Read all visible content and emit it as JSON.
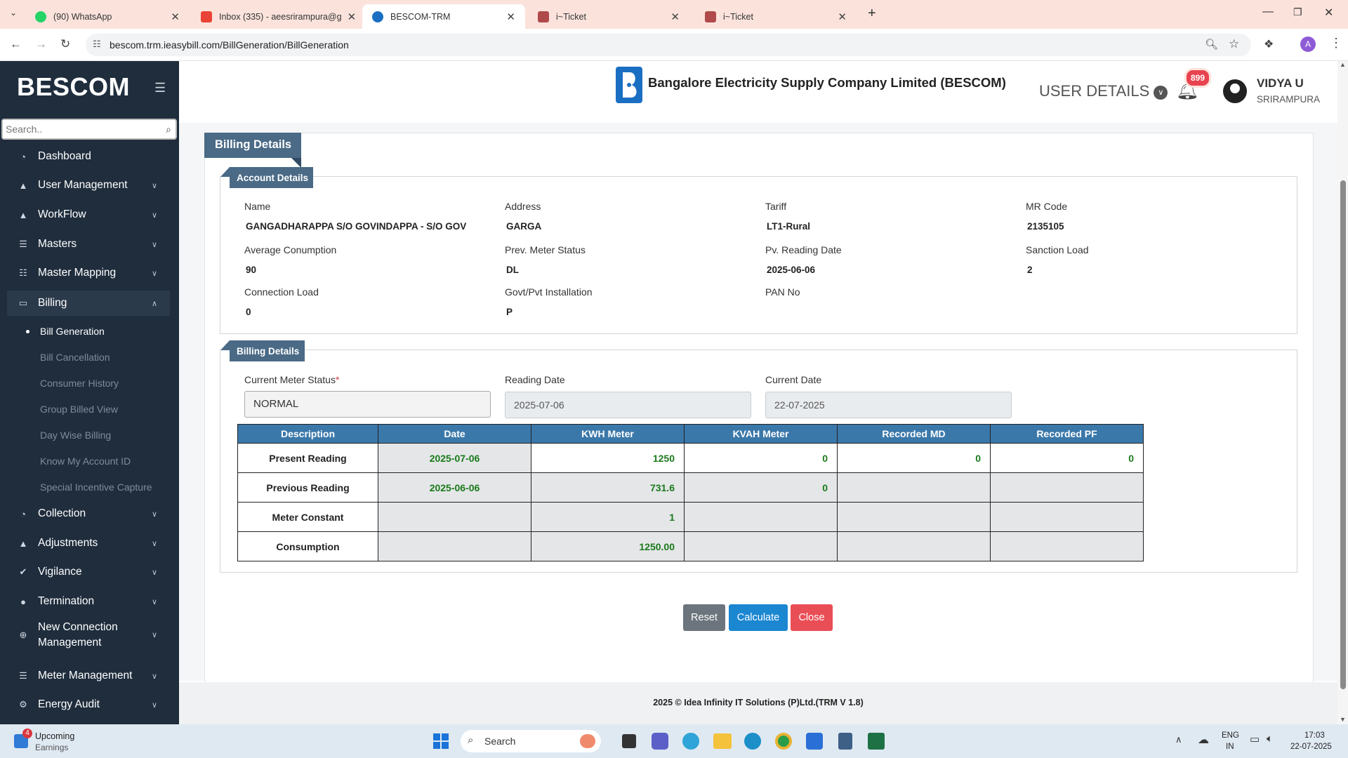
{
  "browser": {
    "tabs": [
      {
        "title": "(90) WhatsApp",
        "icon": "whatsapp-icon",
        "color": "#25d366"
      },
      {
        "title": "Inbox (335) - aeesrirampura@g",
        "icon": "gmail-icon",
        "color": "#ea4335"
      },
      {
        "title": "BESCOM-TRM",
        "icon": "bescom-icon",
        "color": "#1b6fc2"
      },
      {
        "title": "i~Ticket",
        "icon": "ticket-icon",
        "color": "#8b3a3a"
      },
      {
        "title": "i~Ticket",
        "icon": "ticket-icon",
        "color": "#8b3a3a"
      }
    ],
    "url": "bescom.trm.ieasybill.com/BillGeneration/BillGeneration",
    "profile_initial": "A"
  },
  "sidebar": {
    "brand": "BESCOM",
    "search_placeholder": "Search..",
    "menu": [
      {
        "label": "Dashboard",
        "icon": "dashboard-icon"
      },
      {
        "label": "User Management",
        "icon": "user-icon"
      },
      {
        "label": "WorkFlow",
        "icon": "workflow-icon"
      },
      {
        "label": "Masters",
        "icon": "list-icon"
      },
      {
        "label": "Master Mapping",
        "icon": "sitemap-icon"
      },
      {
        "label": "Billing",
        "icon": "monitor-icon"
      },
      {
        "label": "Collection",
        "icon": "collection-icon"
      },
      {
        "label": "Adjustments",
        "icon": "adjust-icon"
      },
      {
        "label": "Vigilance",
        "icon": "vigilance-icon"
      },
      {
        "label": "Termination",
        "icon": "termination-icon"
      },
      {
        "label": "New Connection Management",
        "icon": "plus-circle-icon"
      },
      {
        "label": "Meter Management",
        "icon": "list-icon"
      },
      {
        "label": "Energy Audit",
        "icon": "cogs-icon"
      }
    ],
    "billing_sub": [
      "Bill Generation",
      "Bill Cancellation",
      "Consumer History",
      "Group Billed View",
      "Day Wise Billing",
      "Know My Account ID",
      "Special Incentive Capture"
    ]
  },
  "header": {
    "company": "Bangalore Electricity Supply Company Limited (BESCOM)",
    "user_details": "USER DETAILS",
    "notifications": "899",
    "user_name": "VIDYA U",
    "user_location": "SRIRAMPURA"
  },
  "billing": {
    "panel_title": "Billing Details",
    "account_section": "Account Details",
    "account": [
      {
        "label": "Name",
        "value": "GANGADHARAPPA S/O GOVINDAPPA - S/O GOV"
      },
      {
        "label": "Address",
        "value": "GARGA"
      },
      {
        "label": "Tariff",
        "value": "LT1-Rural"
      },
      {
        "label": "MR Code",
        "value": "2135105"
      },
      {
        "label": "Average Conumption",
        "value": "90"
      },
      {
        "label": "Prev. Meter Status",
        "value": "DL"
      },
      {
        "label": "Pv. Reading Date",
        "value": "2025-06-06"
      },
      {
        "label": "Sanction Load",
        "value": "2"
      },
      {
        "label": "Connection Load",
        "value": "0"
      },
      {
        "label": "Govt/Pvt Installation",
        "value": "P"
      },
      {
        "label": "PAN No",
        "value": ""
      }
    ],
    "billing_section": "Billing Details",
    "current_meter_status_label": "Current Meter Status",
    "current_meter_status": "NORMAL",
    "reading_date_label": "Reading Date",
    "reading_date": "2025-07-06",
    "current_date_label": "Current Date",
    "current_date": "22-07-2025",
    "table": {
      "headers": [
        "Description",
        "Date",
        "KWH Meter",
        "KVAH Meter",
        "Recorded MD",
        "Recorded PF"
      ],
      "rows": [
        [
          "Present Reading",
          "2025-07-06",
          "1250",
          "0",
          "0",
          "0"
        ],
        [
          "Previous Reading",
          "2025-06-06",
          "731.6",
          "0",
          "",
          ""
        ],
        [
          "Meter Constant",
          "",
          "1",
          "",
          "",
          ""
        ],
        [
          "Consumption",
          "",
          "1250.00",
          "",
          "",
          ""
        ]
      ]
    },
    "buttons": {
      "reset": "Reset",
      "calculate": "Calculate",
      "close": "Close"
    },
    "button_colors": {
      "reset": "#6c757d",
      "calculate": "#1b87d1",
      "close": "#e94e56"
    }
  },
  "footer": "2025 © Idea Infinity IT Solutions (P)Ltd.(TRM V 1.8)",
  "taskbar": {
    "widget_badge": "4",
    "widget_title": "Upcoming",
    "widget_sub": "Earnings",
    "search_placeholder": "Search",
    "lang_top": "ENG",
    "lang_bottom": "IN",
    "time": "17:03",
    "date": "22-07-2025"
  }
}
